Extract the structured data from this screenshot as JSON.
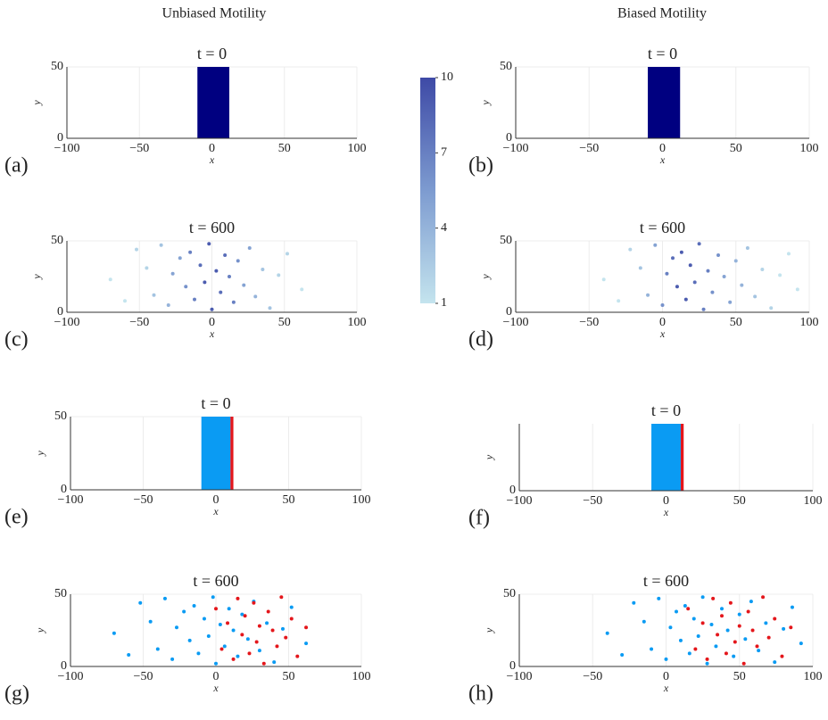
{
  "column_titles": [
    "Unbiased Motility",
    "Biased Motility"
  ],
  "colorbar": {
    "lim": [
      1,
      10
    ],
    "ticks": [
      1,
      4,
      7,
      10
    ],
    "colors": [
      "#c4e4ee",
      "#7d9bd0",
      "#3e4aa6"
    ]
  },
  "chart_data": [
    {
      "type": "block",
      "label": "(a)",
      "title": "t = 0",
      "xlabel": "x",
      "ylabel": "y",
      "xlim": [
        -100,
        100
      ],
      "ylim": [
        0,
        50
      ],
      "xticks": [
        {
          "value": -100,
          "label": "−100"
        },
        {
          "value": -50,
          "label": "−50"
        },
        0,
        50,
        100
      ],
      "yticks": [
        0,
        50
      ],
      "blocks": [
        {
          "x": [
            -10,
            12
          ],
          "y": [
            0,
            50
          ],
          "color": "#000080"
        }
      ]
    },
    {
      "type": "block",
      "label": "(b)",
      "title": "t = 0",
      "xlabel": "x",
      "ylabel": "y",
      "xlim": [
        -100,
        100
      ],
      "ylim": [
        0,
        50
      ],
      "xticks": [
        {
          "value": -100,
          "label": "−100"
        },
        {
          "value": -50,
          "label": "−50"
        },
        0,
        50,
        100
      ],
      "yticks": [
        0,
        50
      ],
      "blocks": [
        {
          "x": [
            -10,
            12
          ],
          "y": [
            0,
            50
          ],
          "color": "#000080"
        }
      ]
    },
    {
      "type": "scatter",
      "label": "(c)",
      "title": "t = 600",
      "xlabel": "x",
      "ylabel": "y",
      "xlim": [
        -100,
        100
      ],
      "ylim": [
        0,
        50
      ],
      "xticks": [
        {
          "value": -100,
          "label": "−100"
        },
        {
          "value": -50,
          "label": "−50"
        },
        0,
        50,
        100
      ],
      "yticks": [
        0,
        50
      ],
      "series": [
        {
          "x": [
            -70,
            -60,
            -52,
            -45,
            -40,
            -35,
            -30,
            -27,
            -22,
            -18,
            -15,
            -12,
            -8,
            -5,
            -2,
            0,
            3,
            6,
            9,
            12,
            15,
            18,
            22,
            26,
            30,
            35,
            40,
            46,
            52,
            62
          ],
          "y": [
            23,
            8,
            44,
            31,
            12,
            47,
            5,
            27,
            38,
            18,
            42,
            9,
            33,
            21,
            48,
            2,
            29,
            14,
            40,
            25,
            7,
            36,
            19,
            45,
            11,
            30,
            3,
            26,
            41,
            16
          ],
          "values": [
            1,
            1,
            2,
            2,
            3,
            3,
            4,
            5,
            5,
            6,
            7,
            7,
            8,
            9,
            9,
            9,
            9,
            8,
            8,
            7,
            7,
            6,
            5,
            5,
            4,
            3,
            3,
            2,
            2,
            1
          ]
        }
      ]
    },
    {
      "type": "scatter",
      "label": "(d)",
      "title": "t = 600",
      "xlabel": "x",
      "ylabel": "y",
      "xlim": [
        -100,
        100
      ],
      "ylim": [
        0,
        50
      ],
      "xticks": [
        {
          "value": -100,
          "label": "−100"
        },
        {
          "value": -50,
          "label": "−50"
        },
        0,
        50,
        100
      ],
      "yticks": [
        0,
        50
      ],
      "series": [
        {
          "x": [
            -40,
            -30,
            -22,
            -15,
            -10,
            -5,
            0,
            3,
            7,
            10,
            13,
            16,
            19,
            22,
            25,
            28,
            31,
            34,
            38,
            42,
            46,
            50,
            54,
            58,
            63,
            68,
            74,
            80,
            86,
            92
          ],
          "y": [
            23,
            8,
            44,
            31,
            12,
            47,
            5,
            27,
            38,
            18,
            42,
            9,
            33,
            21,
            48,
            2,
            29,
            14,
            40,
            25,
            7,
            36,
            19,
            45,
            11,
            30,
            3,
            26,
            41,
            16
          ],
          "values": [
            1,
            1,
            2,
            3,
            4,
            5,
            6,
            7,
            8,
            9,
            9,
            9,
            9,
            8,
            8,
            7,
            7,
            6,
            6,
            5,
            5,
            4,
            4,
            3,
            3,
            2,
            2,
            1,
            1,
            1
          ]
        }
      ]
    },
    {
      "type": "block",
      "label": "(e)",
      "title": "t = 0",
      "xlabel": "x",
      "ylabel": "y",
      "xlim": [
        -100,
        100
      ],
      "ylim": [
        0,
        50
      ],
      "xticks": [
        {
          "value": -100,
          "label": "−100"
        },
        {
          "value": -50,
          "label": "−50"
        },
        0,
        50,
        100
      ],
      "yticks": [
        0,
        50
      ],
      "blocks": [
        {
          "x": [
            -10,
            10
          ],
          "y": [
            0,
            50
          ],
          "color": "#0a9bf3"
        },
        {
          "x": [
            10,
            12
          ],
          "y": [
            0,
            50
          ],
          "color": "#e4161b"
        }
      ]
    },
    {
      "type": "block",
      "label": "(f)",
      "title": "t = 0",
      "xlabel": "x",
      "ylabel": "y",
      "xlim": [
        -100,
        100
      ],
      "ylim": [
        0,
        50
      ],
      "xticks": [
        {
          "value": -100,
          "label": "−100"
        },
        {
          "value": -50,
          "label": "−50"
        },
        0,
        50,
        100
      ],
      "yticks": [
        0
      ],
      "blocks": [
        {
          "x": [
            -10,
            10
          ],
          "y": [
            0,
            50
          ],
          "color": "#0a9bf3"
        },
        {
          "x": [
            10,
            12
          ],
          "y": [
            0,
            50
          ],
          "color": "#e4161b"
        }
      ]
    },
    {
      "type": "scatter",
      "label": "(g)",
      "title": "t = 600",
      "xlabel": "x",
      "ylabel": "y",
      "xlim": [
        -100,
        100
      ],
      "ylim": [
        0,
        50
      ],
      "xticks": [
        {
          "value": -100,
          "label": "−100"
        },
        {
          "value": -50,
          "label": "−50"
        },
        0,
        50,
        100
      ],
      "yticks": [
        0,
        50
      ],
      "series": [
        {
          "color": "#0a9bf3",
          "x": [
            -70,
            -60,
            -52,
            -45,
            -40,
            -35,
            -30,
            -27,
            -22,
            -18,
            -15,
            -12,
            -8,
            -5,
            -2,
            0,
            3,
            6,
            9,
            12,
            15,
            18,
            22,
            26,
            30,
            35,
            40,
            46,
            52,
            62
          ],
          "y": [
            23,
            8,
            44,
            31,
            12,
            47,
            5,
            27,
            38,
            18,
            42,
            9,
            33,
            21,
            48,
            2,
            29,
            14,
            40,
            25,
            7,
            36,
            19,
            45,
            11,
            30,
            3,
            26,
            41,
            16
          ]
        },
        {
          "color": "#e4161b",
          "x": [
            0,
            4,
            8,
            12,
            15,
            18,
            20,
            23,
            26,
            28,
            30,
            33,
            36,
            39,
            42,
            45,
            48,
            52,
            56,
            62
          ],
          "y": [
            40,
            12,
            30,
            5,
            47,
            22,
            35,
            9,
            44,
            17,
            28,
            2,
            38,
            25,
            14,
            48,
            20,
            33,
            7,
            27
          ]
        }
      ]
    },
    {
      "type": "scatter",
      "label": "(h)",
      "title": "t = 600",
      "xlabel": "x",
      "ylabel": "y",
      "xlim": [
        -100,
        100
      ],
      "ylim": [
        0,
        50
      ],
      "xticks": [
        {
          "value": -100,
          "label": "−100"
        },
        {
          "value": -50,
          "label": "−50"
        },
        0,
        50,
        100
      ],
      "yticks": [
        0,
        50
      ],
      "series": [
        {
          "color": "#0a9bf3",
          "x": [
            -40,
            -30,
            -22,
            -15,
            -10,
            -5,
            0,
            3,
            7,
            10,
            13,
            16,
            19,
            22,
            25,
            28,
            31,
            34,
            38,
            42,
            46,
            50,
            54,
            58,
            63,
            68,
            74,
            80,
            86,
            92
          ],
          "y": [
            23,
            8,
            44,
            31,
            12,
            47,
            5,
            27,
            38,
            18,
            42,
            9,
            33,
            21,
            48,
            2,
            29,
            14,
            40,
            25,
            7,
            36,
            19,
            45,
            11,
            30,
            3,
            26,
            41,
            16
          ]
        },
        {
          "color": "#e4161b",
          "x": [
            15,
            20,
            25,
            28,
            32,
            35,
            38,
            41,
            44,
            47,
            50,
            53,
            56,
            59,
            62,
            66,
            70,
            74,
            79,
            85
          ],
          "y": [
            40,
            12,
            30,
            5,
            47,
            22,
            35,
            9,
            44,
            17,
            28,
            2,
            38,
            25,
            14,
            48,
            20,
            33,
            7,
            27
          ]
        }
      ]
    }
  ]
}
